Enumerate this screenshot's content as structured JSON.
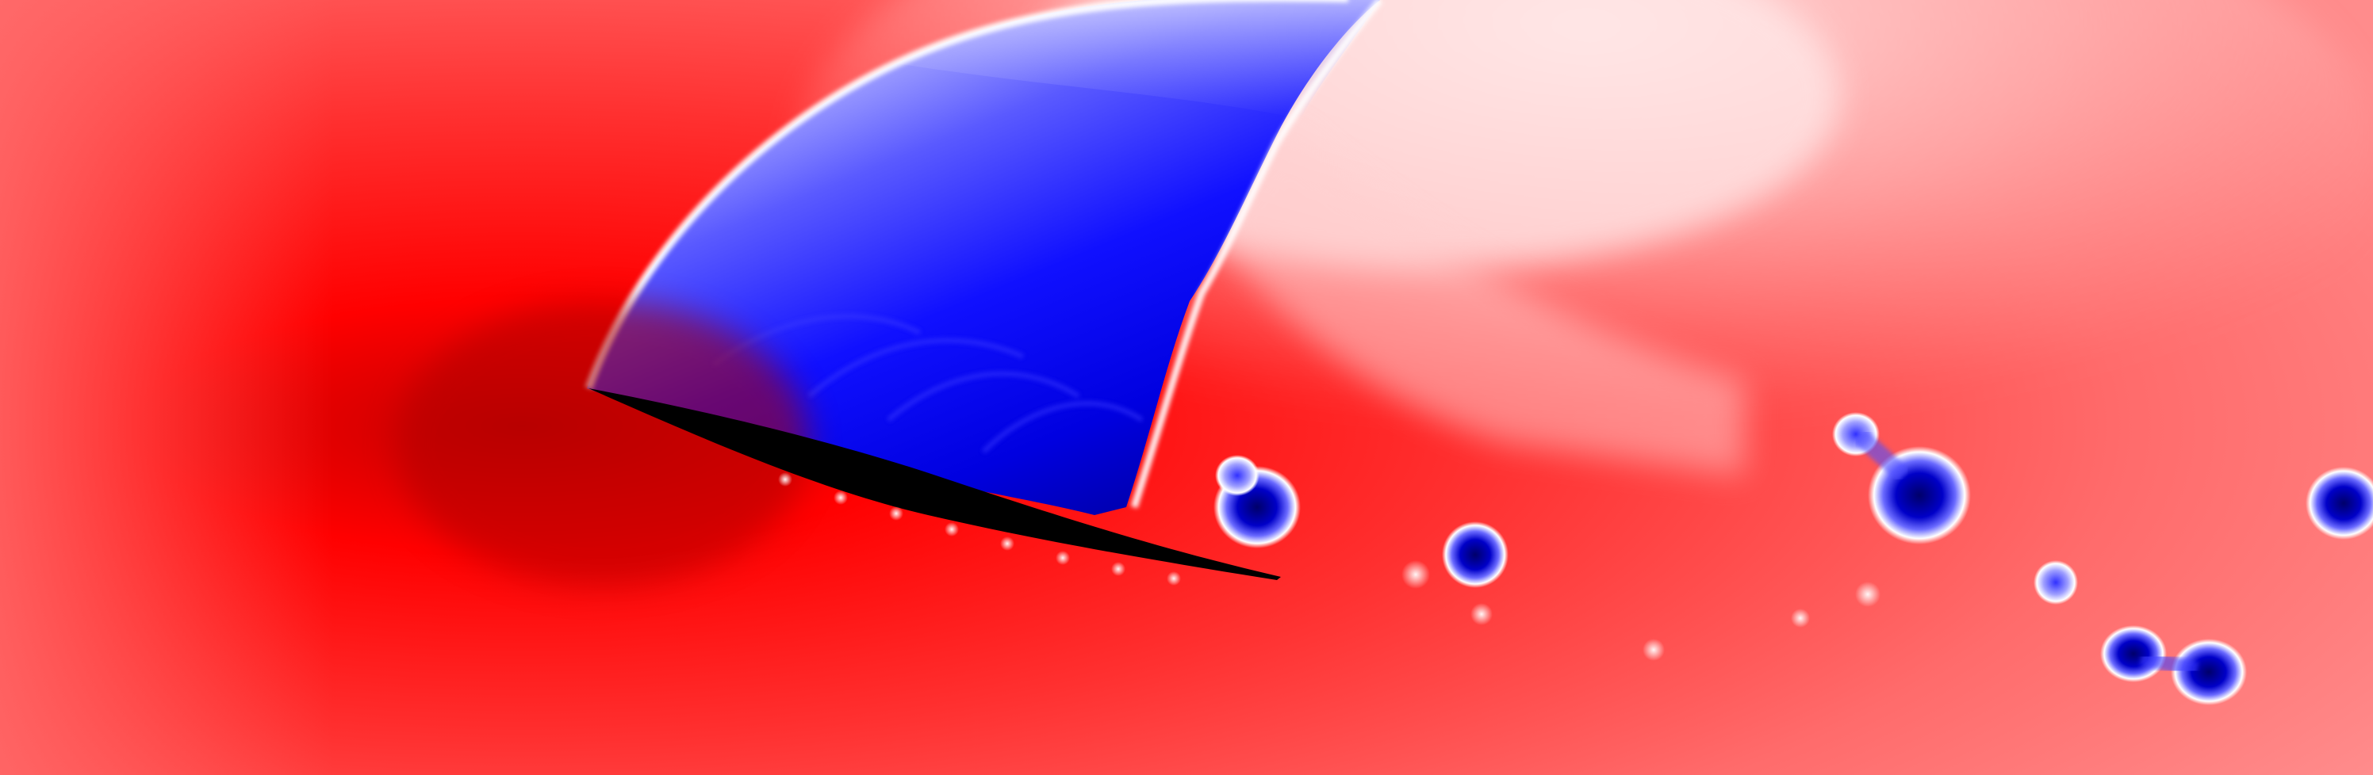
{
  "scene": {
    "kind": "pressure-field-visualization",
    "palette": {
      "positive_deep": "#b80000",
      "positive": "#ff0000",
      "positive_light": "#ff8a8a",
      "neutral": "#ffffff",
      "negative": "#0000ff",
      "negative_deep": "#00008a",
      "body": "#000000"
    },
    "objects": [
      "inclined-airfoil",
      "leading-edge-shock",
      "low-pressure-region",
      "shed-vortices"
    ]
  }
}
